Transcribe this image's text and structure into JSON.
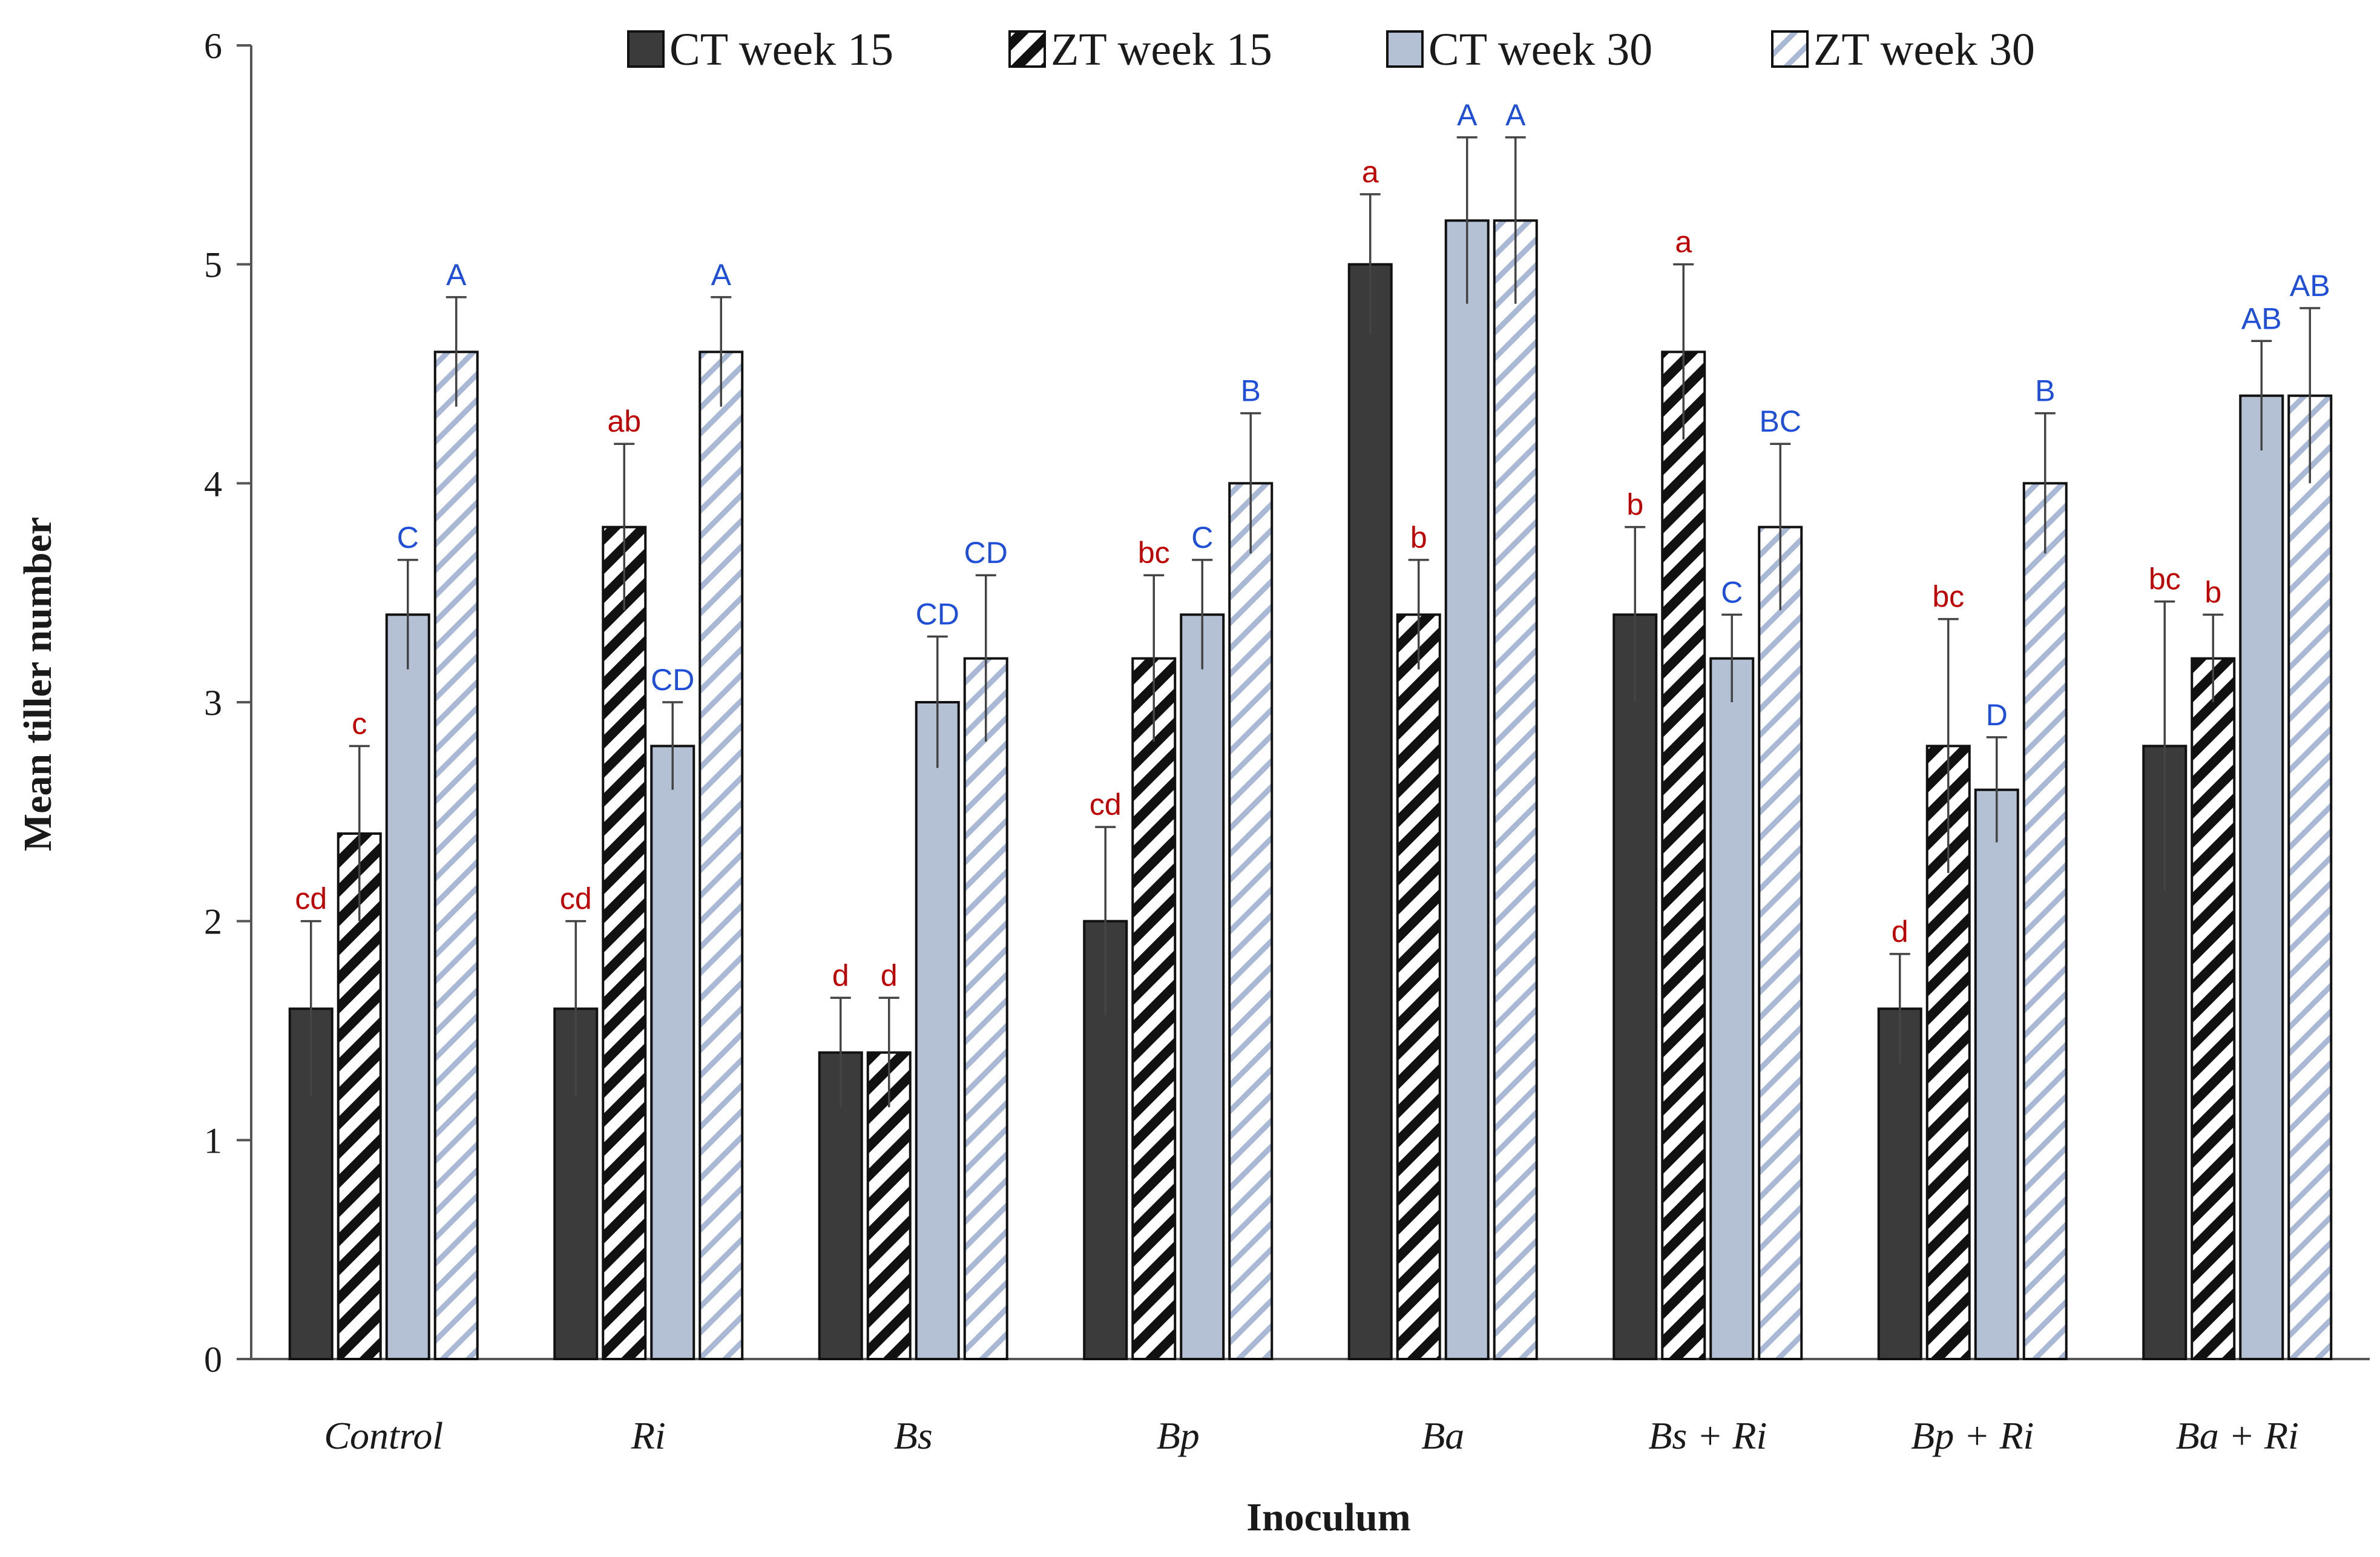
{
  "chart_data": {
    "type": "bar",
    "title": "",
    "xlabel": "Inoculum",
    "ylabel": "Mean tiller number",
    "ylim": [
      0,
      6
    ],
    "yticks": [
      "0",
      "1",
      "2",
      "3",
      "4",
      "5",
      "6"
    ],
    "grid": false,
    "legend_position": "top",
    "categories": [
      "Control",
      "Ri",
      "Bs",
      "Bp",
      "Ba",
      "Bs + Ri",
      "Bp + Ri",
      "Ba + Ri"
    ],
    "series": [
      {
        "name": "CT week 15",
        "pattern": "solid-dark",
        "color": "#3b3b3b",
        "label_color": "#c00000",
        "values": [
          1.6,
          1.6,
          1.4,
          2.0,
          5.0,
          3.4,
          1.6,
          2.8
        ],
        "errors": [
          0.4,
          0.4,
          0.25,
          0.43,
          0.32,
          0.4,
          0.25,
          0.66
        ],
        "letters": [
          "cd",
          "cd",
          "d",
          "cd",
          "a",
          "b",
          "d",
          "bc"
        ]
      },
      {
        "name": "ZT week 15",
        "pattern": "hatch-black",
        "color": "#111111",
        "label_color": "#c00000",
        "values": [
          2.4,
          3.8,
          1.4,
          3.2,
          3.4,
          4.6,
          2.8,
          3.2
        ],
        "errors": [
          0.4,
          0.38,
          0.25,
          0.38,
          0.25,
          0.4,
          0.58,
          0.2
        ],
        "letters": [
          "c",
          "ab",
          "d",
          "bc",
          "b",
          "a",
          "bc",
          "b"
        ]
      },
      {
        "name": "CT week 30",
        "pattern": "solid-light",
        "color": "#b4c0d4",
        "label_color": "#1f4fd8",
        "values": [
          3.4,
          2.8,
          3.0,
          3.4,
          5.2,
          3.2,
          2.6,
          4.4
        ],
        "errors": [
          0.25,
          0.2,
          0.3,
          0.25,
          0.38,
          0.2,
          0.24,
          0.25
        ],
        "letters": [
          "C",
          "CD",
          "CD",
          "C",
          "A",
          "C",
          "D",
          "AB"
        ]
      },
      {
        "name": "ZT week 30",
        "pattern": "hatch-light",
        "color": "#a9b8d4",
        "label_color": "#1f4fd8",
        "values": [
          4.6,
          4.6,
          3.2,
          4.0,
          5.2,
          3.8,
          4.0,
          4.4
        ],
        "errors": [
          0.25,
          0.25,
          0.38,
          0.32,
          0.38,
          0.38,
          0.32,
          0.4
        ],
        "letters": [
          "A",
          "A",
          "CD",
          "B",
          "A",
          "BC",
          "B",
          "AB"
        ]
      }
    ]
  }
}
